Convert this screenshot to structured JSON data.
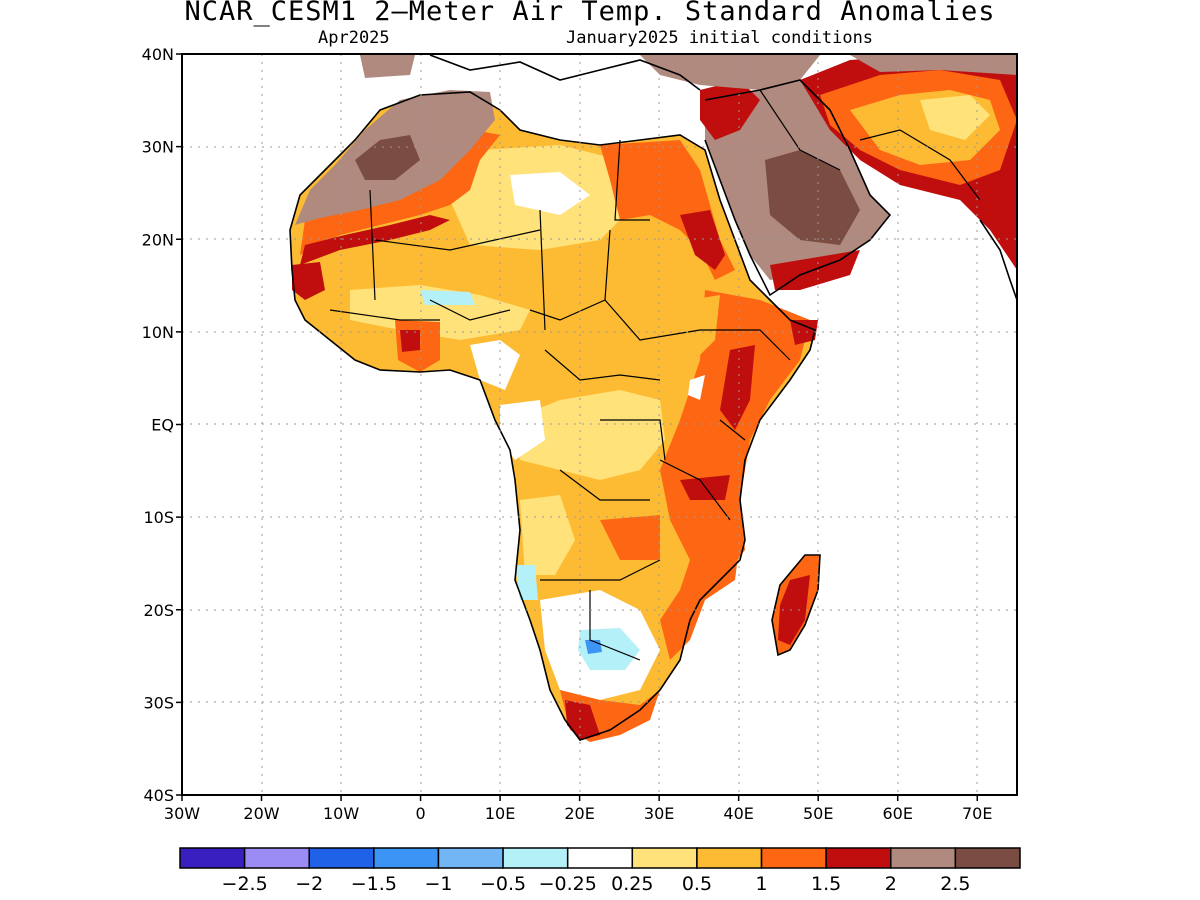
{
  "header": {
    "title": "NCAR_CESM1 2—Meter Air Temp. Standard Anomalies",
    "valid_month": "Apr2025",
    "initial_conditions": "January2025 initial conditions"
  },
  "chart_data": {
    "type": "heatmap",
    "map_extent": {
      "lon": [
        -30,
        75
      ],
      "lat": [
        -40,
        40
      ]
    },
    "grid": true,
    "lon_ticks": [
      -30,
      -20,
      -10,
      0,
      10,
      20,
      30,
      40,
      50,
      60,
      70
    ],
    "lat_ticks": [
      -40,
      -30,
      -20,
      -10,
      0,
      10,
      20,
      30,
      40
    ],
    "lon_tick_labels": [
      "30W",
      "20W",
      "10W",
      "0",
      "10E",
      "20E",
      "30E",
      "40E",
      "50E",
      "60E",
      "70E"
    ],
    "lat_tick_labels": [
      "40S",
      "30S",
      "20S",
      "10S",
      "EQ",
      "10N",
      "20N",
      "30N",
      "40N"
    ],
    "colorbar": {
      "colors": [
        "#3a1fc0",
        "#9b8bf5",
        "#1f62e8",
        "#3c95f4",
        "#73b6f5",
        "#b4f0f8",
        "#ffffff",
        "#ffe27a",
        "#fdbb34",
        "#fd6612",
        "#c00e0e",
        "#b08a7e",
        "#7a4c42"
      ],
      "labels": [
        "−2.5",
        "−2",
        "−1.5",
        "−1",
        "−0.5",
        "−0.25",
        "0.25",
        "0.5",
        "1",
        "1.5",
        "2",
        "2.5"
      ],
      "values": [
        -2.5,
        -2,
        -1.5,
        -1,
        -0.5,
        -0.25,
        0.25,
        0.5,
        1,
        1.5,
        2,
        2.5
      ]
    },
    "regions": [
      {
        "name": "north-africa-coast",
        "level": 2.5
      },
      {
        "name": "sahara",
        "level": 0.75
      },
      {
        "name": "southern-sahara-band",
        "level": 1.75
      },
      {
        "name": "sahel",
        "level": 1.25
      },
      {
        "name": "west-africa",
        "level": 0.75
      },
      {
        "name": "congo-basin",
        "level": 0.75
      },
      {
        "name": "east-africa",
        "level": 1.75
      },
      {
        "name": "horn-of-africa",
        "level": 2.0
      },
      {
        "name": "arabian-peninsula",
        "level": 2.5
      },
      {
        "name": "iran-afghanistan",
        "level": 1.25
      },
      {
        "name": "pakistan-india",
        "level": 1.75
      },
      {
        "name": "southern-africa",
        "level": 0.75
      },
      {
        "name": "namibia-botswana",
        "level": -0.25
      },
      {
        "name": "madagascar",
        "level": 2.0
      }
    ]
  }
}
